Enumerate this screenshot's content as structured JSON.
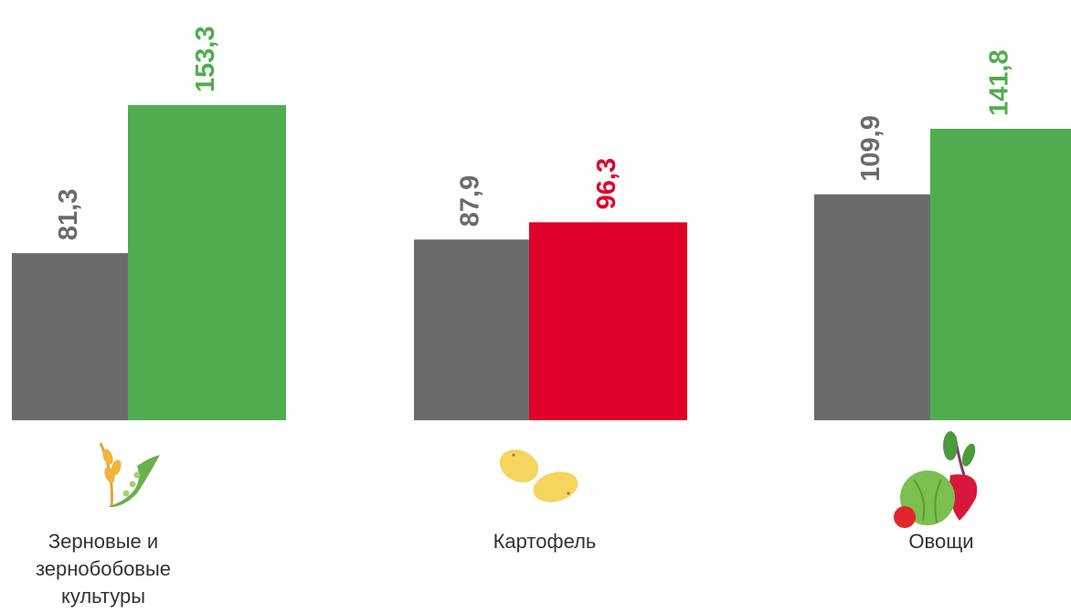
{
  "chart_data": {
    "type": "bar",
    "categories": [
      "Зерновые и зернобобовые культуры",
      "Картофель",
      "Овощи"
    ],
    "series": [
      {
        "color": "#6b6b6b",
        "values": [
          81.3,
          87.9,
          109.9
        ],
        "value_labels": [
          "81,3",
          "87,9",
          "109,9"
        ]
      },
      {
        "colors": [
          "#50ad4f",
          "#e0002a",
          "#50ad4f"
        ],
        "values": [
          153.3,
          96.3,
          141.8
        ],
        "value_labels": [
          "153,3",
          "96,3",
          "141,8"
        ]
      }
    ]
  }
}
